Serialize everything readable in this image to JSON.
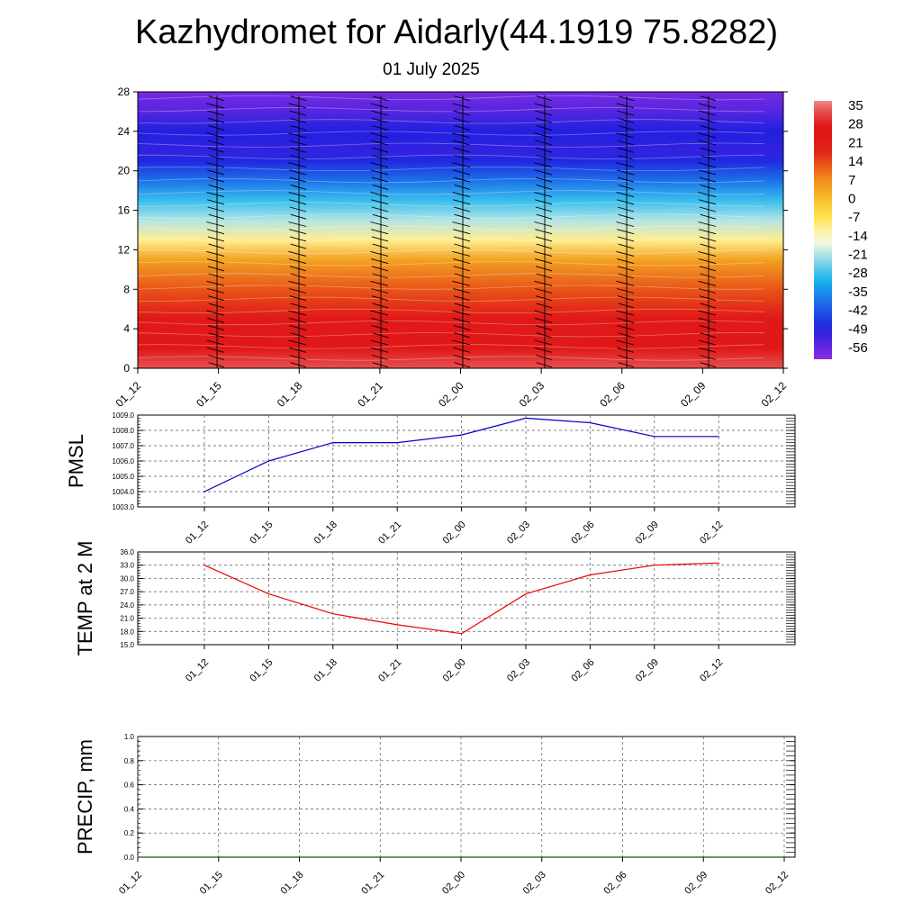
{
  "title": "Kazhydromet for Aidarly(44.1919 75.8282)",
  "subtitle": "01 July 2025",
  "chart_data": [
    {
      "type": "heatmap",
      "x_ticks": [
        "01_12",
        "01_15",
        "01_18",
        "01_21",
        "02_00",
        "02_03",
        "02_06",
        "02_09",
        "02_12"
      ],
      "y_ticks": [
        0,
        4,
        8,
        12,
        16,
        20,
        24,
        28
      ],
      "ylim": [
        0,
        28
      ],
      "colorbar_labels": [
        35,
        28,
        21,
        14,
        7,
        0,
        -7,
        -14,
        -21,
        -28,
        -35,
        -42,
        -49,
        -56
      ],
      "colorbar_range": [
        -60,
        38
      ],
      "wind_barbs": true,
      "temperature_profile": [
        {
          "height": 0,
          "value": 34
        },
        {
          "height": 2,
          "value": 30
        },
        {
          "height": 5,
          "value": 23
        },
        {
          "height": 8,
          "value": 14
        },
        {
          "height": 11,
          "value": 5
        },
        {
          "height": 13,
          "value": -10
        },
        {
          "height": 15,
          "value": -20
        },
        {
          "height": 17,
          "value": -28
        },
        {
          "height": 19,
          "value": -38
        },
        {
          "height": 21,
          "value": -47
        },
        {
          "height": 22,
          "value": -50
        },
        {
          "height": 24,
          "value": -48
        },
        {
          "height": 26,
          "value": -54
        },
        {
          "height": 28,
          "value": -58
        }
      ],
      "palette": {
        "violet": "#8a2be2",
        "blue": "#2020e0",
        "cyan": "#18b4f0",
        "light": "#fffce0",
        "yellow": "#ffe040",
        "orange": "#f09018",
        "red": "#e01818",
        "pink": "#f08888"
      }
    },
    {
      "type": "line",
      "ylabel": "PMSL",
      "x_ticks": [
        "01_12",
        "01_15",
        "01_18",
        "01_21",
        "02_00",
        "02_03",
        "02_06",
        "02_09",
        "02_12"
      ],
      "y_ticks": [
        "1003.0",
        "1004.0",
        "1005.0",
        "1006.0",
        "1007.0",
        "1008.0",
        "1009.0"
      ],
      "ylim": [
        1003.0,
        1009.0
      ],
      "series": [
        {
          "color": "#0000cc",
          "values": [
            1004.0,
            1006.0,
            1007.2,
            1007.2,
            1007.7,
            1008.8,
            1008.5,
            1007.6,
            1007.6
          ]
        }
      ]
    },
    {
      "type": "line",
      "ylabel": "TEMP at 2 M",
      "x_ticks": [
        "01_12",
        "01_15",
        "01_18",
        "01_21",
        "02_00",
        "02_03",
        "02_06",
        "02_09",
        "02_12"
      ],
      "y_ticks": [
        "15.0",
        "18.0",
        "21.0",
        "24.0",
        "27.0",
        "30.0",
        "33.0",
        "36.0"
      ],
      "ylim": [
        15.0,
        36.0
      ],
      "series": [
        {
          "color": "#ee0000",
          "values": [
            33.0,
            26.5,
            22.0,
            19.5,
            17.5,
            26.5,
            30.8,
            33.0,
            33.5
          ]
        }
      ]
    },
    {
      "type": "line",
      "ylabel": "PRECIP, mm",
      "x_ticks": [
        "01_12",
        "01_15",
        "01_18",
        "01_21",
        "02_00",
        "02_03",
        "02_06",
        "02_09",
        "02_12"
      ],
      "y_ticks": [
        "0.0",
        "0.2",
        "0.4",
        "0.6",
        "0.8",
        "1.0"
      ],
      "ylim": [
        0.0,
        1.0
      ],
      "series": [
        {
          "color": "#006400",
          "values": [
            0,
            0,
            0,
            0,
            0,
            0,
            0,
            0,
            0
          ]
        }
      ]
    }
  ]
}
